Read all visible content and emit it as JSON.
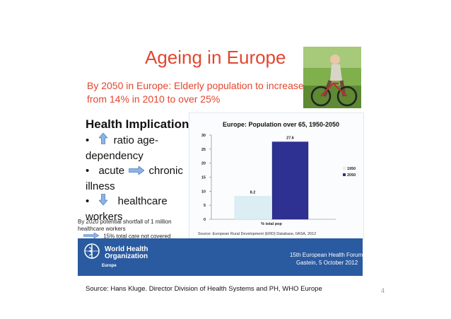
{
  "title": "Ageing in Europe",
  "subtitle": "By 2050 in Europe: Elderly population to increase from 14% in 2010 to over 25%",
  "implications": {
    "heading": "Health Implications:",
    "items": [
      {
        "bullet": "•",
        "icon": "up-arrow-icon",
        "text_a": "ratio age-",
        "text_b": "dependency"
      },
      {
        "bullet": "•",
        "text_a": "acute",
        "icon": "right-arrow-icon",
        "text_b": "chronic",
        "text_c": "illness"
      },
      {
        "bullet": "•",
        "icon": "down-arrow-icon",
        "text_a": "healthcare",
        "text_b": "workers"
      }
    ]
  },
  "shortfall": {
    "line1": "By 2020 potential shortfall of 1 million",
    "line2": "healthcare workers",
    "line3": "15% total care not covered"
  },
  "chart_data": {
    "type": "bar",
    "title": "Europe: Population over 65, 1950-2050",
    "categories": [
      "% total pop"
    ],
    "series": [
      {
        "name": "1950",
        "values": [
          8.2
        ],
        "color": "#dbeef3"
      },
      {
        "name": "2050",
        "values": [
          27.6
        ],
        "color": "#2e3192"
      }
    ],
    "data_labels": [
      "8.2",
      "27.6"
    ],
    "ylim": [
      0,
      30
    ],
    "yticks": [
      "0",
      "5",
      "10",
      "15",
      "20",
      "25",
      "30"
    ],
    "xlabel": "% total pop",
    "legend": "right",
    "source": "Source: European Rural Development (ERD) Database, IIASA, 2012"
  },
  "banner": {
    "org_line1": "World Health",
    "org_line2": "Organization",
    "region": "Europe",
    "forum_line1": "15th European Health Forum",
    "forum_line2": "Gastein, 5 October 2012",
    "logo_icon": "who-emblem-icon"
  },
  "footer": {
    "source": "Source: Hans Kluge. Director Division of Health Systems and PH, WHO Europe",
    "page": "4"
  },
  "colors": {
    "title": "#e3462f",
    "banner": "#2a5aa0",
    "arrow": "#8db3e2"
  }
}
